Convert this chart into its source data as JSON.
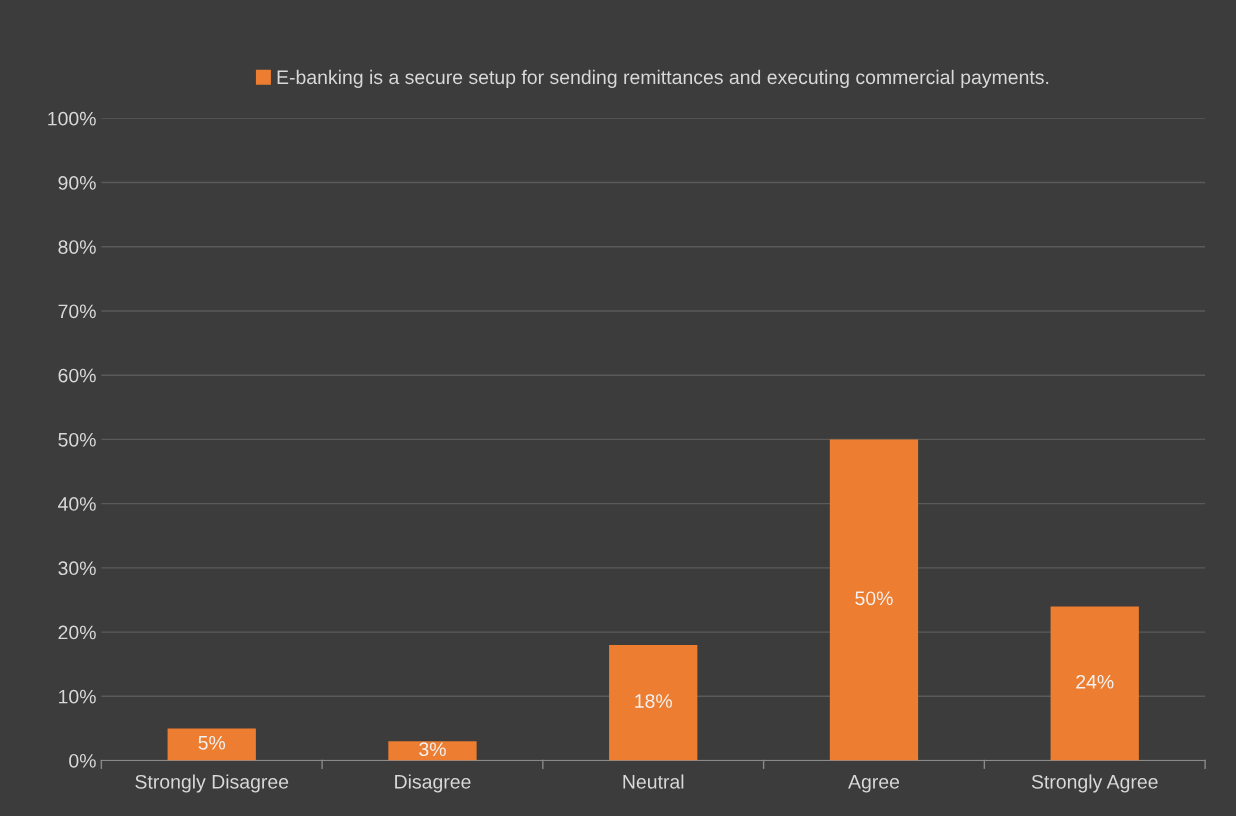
{
  "chart_data": {
    "type": "bar",
    "categories": [
      "Strongly Disagree",
      "Disagree",
      "Neutral",
      "Agree",
      "Strongly Agree"
    ],
    "series": [
      {
        "name": "E-banking is a secure setup for sending remittances and executing commercial payments.",
        "color": "#ed7d31",
        "values": [
          5,
          3,
          18,
          50,
          24
        ],
        "value_labels": [
          "5%",
          "3%",
          "18%",
          "50%",
          "24%"
        ]
      }
    ],
    "ylim": [
      0,
      100
    ],
    "yticks": [
      {
        "value": 0,
        "label": "0%"
      },
      {
        "value": 10,
        "label": "10%"
      },
      {
        "value": 20,
        "label": "20%"
      },
      {
        "value": 30,
        "label": "30%"
      },
      {
        "value": 40,
        "label": "40%"
      },
      {
        "value": 50,
        "label": "50%"
      },
      {
        "value": 60,
        "label": "60%"
      },
      {
        "value": 70,
        "label": "70%"
      },
      {
        "value": 80,
        "label": "80%"
      },
      {
        "value": 90,
        "label": "90%"
      },
      {
        "value": 100,
        "label": "100%"
      }
    ],
    "grid": "y",
    "legend": "top"
  }
}
